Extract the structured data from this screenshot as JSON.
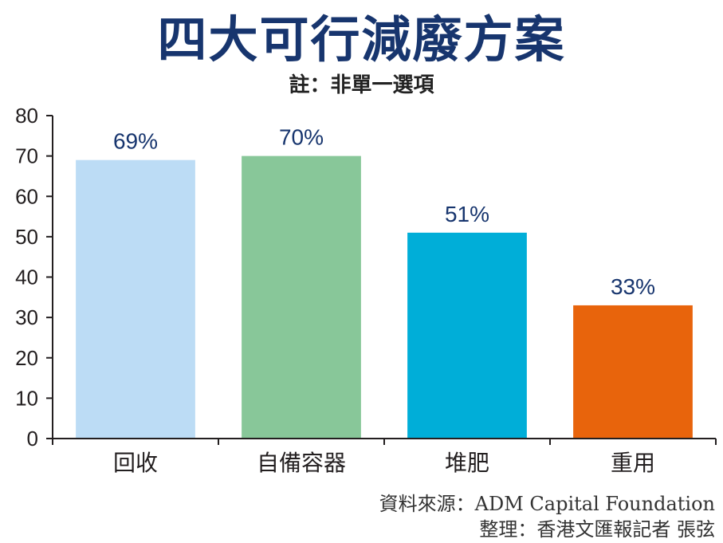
{
  "title": "四大可行減廢方案",
  "subtitle": "註：非單一選項",
  "chart_data": {
    "type": "bar",
    "categories": [
      "回收",
      "自備容器",
      "堆肥",
      "重用"
    ],
    "values": [
      69,
      70,
      51,
      33
    ],
    "value_labels": [
      "69%",
      "70%",
      "51%",
      "33%"
    ],
    "colors": [
      "#bcdcf5",
      "#88c799",
      "#00aed8",
      "#e8640c"
    ],
    "ylim": [
      0,
      80
    ],
    "yticks": [
      0,
      10,
      20,
      30,
      40,
      50,
      60,
      70,
      80
    ],
    "grid": false,
    "legend": "none"
  },
  "credits": {
    "source": "資料來源：ADM Capital Foundation",
    "compiled": "整理：香港文匯報記者 張弦"
  }
}
